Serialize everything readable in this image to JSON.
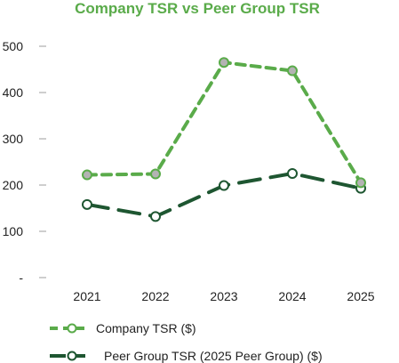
{
  "colors": {
    "company": "#5aab4a",
    "company_marker_fill": "#b3b3b3",
    "peer": "#1e5631",
    "peer_marker_fill": "#ffffff",
    "axis": "#9e9e9e"
  },
  "chart_data": {
    "type": "line",
    "title": "Company TSR vs Peer Group TSR",
    "xlabel": "",
    "ylabel": "",
    "categories": [
      "2021",
      "2022",
      "2023",
      "2024",
      "2025"
    ],
    "y_ticks": [
      "-",
      "100",
      "200",
      "300",
      "400",
      "500"
    ],
    "ylim": [
      0,
      500
    ],
    "grid": false,
    "legend_position": "bottom",
    "series": [
      {
        "name": "Company TSR ($)",
        "values": [
          222,
          224,
          465,
          447,
          205
        ],
        "style": "short-dash"
      },
      {
        "name": "Peer Group TSR (2025 Peer Group) ($)",
        "values": [
          158,
          132,
          199,
          225,
          193
        ],
        "style": "long-dash"
      }
    ]
  }
}
